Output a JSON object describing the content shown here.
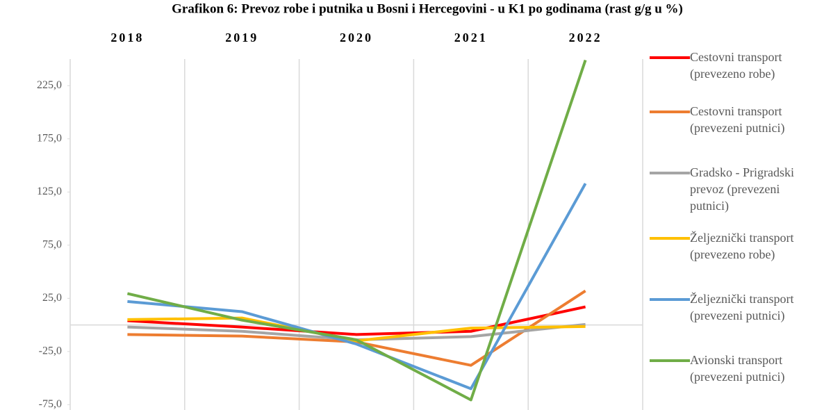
{
  "chart_data": {
    "type": "line",
    "title": "Grafikon 6: Prevoz robe i putnika u Bosni i Hercegovini - u K1 po godinama (rast g/g u %)",
    "categories": [
      "2018",
      "2019",
      "2020",
      "2021",
      "2022"
    ],
    "series": [
      {
        "name": "Cestovni transport (prevezeno robe)",
        "color": "#ff0000",
        "values": [
          4,
          -2,
          -9,
          -6,
          17
        ]
      },
      {
        "name": "Cestovni transport (prevezeni putnici)",
        "color": "#ed7d31",
        "values": [
          -9,
          -10.5,
          -16,
          -38,
          32
        ]
      },
      {
        "name": "Gradsko - Prigradski prevoz (prevezeni putnici)",
        "color": "#a5a5a5",
        "values": [
          -2,
          -6,
          -14,
          -11,
          0.5
        ]
      },
      {
        "name": "Željeznički transport (prevezeno robe)",
        "color": "#ffc000",
        "values": [
          5,
          6.5,
          -15,
          -3,
          -1.5
        ]
      },
      {
        "name": "Željeznički transport (prevezeni putnici)",
        "color": "#5b9bd5",
        "values": [
          22,
          12.5,
          -18,
          -60,
          133
        ]
      },
      {
        "name": "Avionski transport (prevezeni putnici)",
        "color": "#70ad47",
        "values": [
          29.5,
          4.5,
          -14,
          -70.5,
          249
        ]
      }
    ],
    "ylim": [
      -80,
      250
    ],
    "yticks": [
      {
        "value": -75,
        "label": "-75,0"
      },
      {
        "value": -25,
        "label": "-25,0"
      },
      {
        "value": 25,
        "label": "25,0"
      },
      {
        "value": 75,
        "label": "75,0"
      },
      {
        "value": 125,
        "label": "125,0"
      },
      {
        "value": 175,
        "label": "175,0"
      },
      {
        "value": 225,
        "label": "225,0"
      }
    ],
    "grid": "x"
  }
}
